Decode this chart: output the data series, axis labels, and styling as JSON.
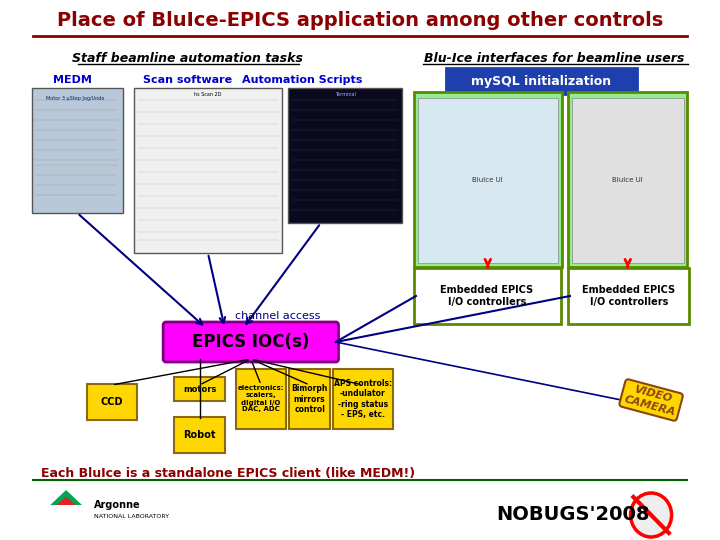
{
  "title": "Place of BluIce-EPICS application among other controls",
  "title_color": "#8B0000",
  "bg_color": "#ffffff",
  "header_left": "Staff beamline automation tasks",
  "header_right": "Blu-Ice interfaces for beamline users",
  "header_color": "#000000",
  "label_medm": "MEDM",
  "label_scan": "Scan software",
  "label_auto": "Automation Scripts",
  "label_mysql": "mySQL initialization",
  "mysql_bg": "#1E40AF",
  "mysql_text": "#ffffff",
  "label_embedded1": "Embedded EPICS\nI/O controllers",
  "label_embedded2": "Embedded EPICS\nI/O controllers",
  "embedded_bg": "#ffffff",
  "embedded_border": "#5B8A00",
  "label_channel": "channel access",
  "channel_color": "#000080",
  "label_epics": "EPICS IOC(s)",
  "epics_bg": "#FF00FF",
  "epics_text": "#000000",
  "label_ccd": "CCD",
  "label_motors": "motors",
  "label_robot": "Robot",
  "label_electronics": "electronics:\nscalers,\ndigital I/O\nDAC, ADC",
  "label_bimorph": "Bimorph\nmirrors\ncontrol",
  "label_aps": "APS controls:\n-undulator\n-ring status\n- EPS, etc.",
  "label_video": "VIDEO\nCAMERA",
  "video_color": "#8B4513",
  "label_footer": "Each BluIce is a standalone EPICS client (like MEDM!)",
  "footer_color": "#8B0000",
  "label_nobugs": "NOBUGS'2008",
  "nobugs_color": "#000000",
  "arrow_color": "#000080",
  "title_underline_color": "#8B0000",
  "section_underline_color": "#006400",
  "footer_underline_color": "#006400",
  "yellow_box_color": "#FFD700",
  "yellow_box_edge": "#8B6914",
  "blueice_panel_border": "#5B8A00",
  "blueice_panel_bg": "#90EE90"
}
